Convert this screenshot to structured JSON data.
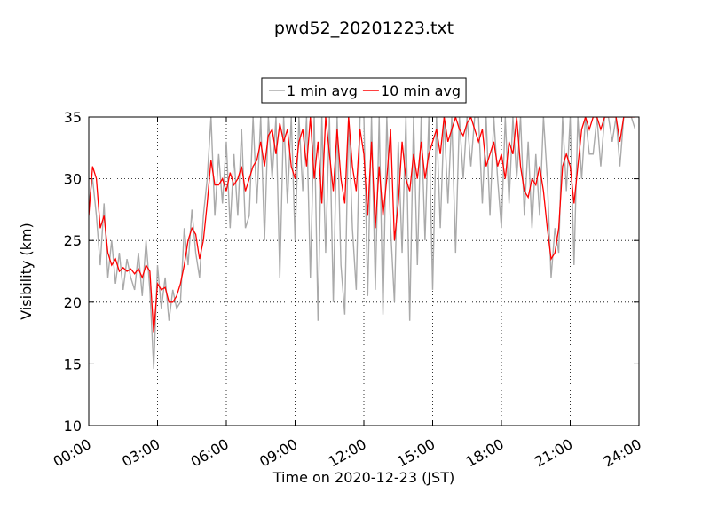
{
  "chart_data": {
    "type": "line",
    "title": "pwd52_20201223.txt",
    "x_label": "Time on 2020-12-23 (JST)",
    "y_label": "Visibility (km)",
    "xlim": [
      0,
      1440
    ],
    "xticks": [
      {
        "value": 0,
        "label": "00:00"
      },
      {
        "value": 180,
        "label": "03:00"
      },
      {
        "value": 360,
        "label": "06:00"
      },
      {
        "value": 540,
        "label": "09:00"
      },
      {
        "value": 720,
        "label": "12:00"
      },
      {
        "value": 900,
        "label": "15:00"
      },
      {
        "value": 1080,
        "label": "18:00"
      },
      {
        "value": 1260,
        "label": "21:00"
      },
      {
        "value": 1440,
        "label": "24:00"
      }
    ],
    "ylim": [
      10,
      35
    ],
    "yticks": [
      10,
      15,
      20,
      25,
      30,
      35
    ],
    "grid": true,
    "legend": "top",
    "x": [
      0,
      10,
      20,
      30,
      40,
      50,
      60,
      70,
      80,
      90,
      100,
      110,
      120,
      130,
      140,
      150,
      160,
      170,
      180,
      190,
      200,
      210,
      220,
      230,
      240,
      250,
      260,
      270,
      280,
      290,
      300,
      310,
      320,
      330,
      340,
      350,
      360,
      370,
      380,
      390,
      400,
      410,
      420,
      430,
      440,
      450,
      460,
      470,
      480,
      490,
      500,
      510,
      520,
      530,
      540,
      550,
      560,
      570,
      580,
      590,
      600,
      610,
      620,
      630,
      640,
      650,
      660,
      670,
      680,
      690,
      700,
      710,
      720,
      730,
      740,
      750,
      760,
      770,
      780,
      790,
      800,
      810,
      820,
      830,
      840,
      850,
      860,
      870,
      880,
      890,
      900,
      910,
      920,
      930,
      940,
      950,
      960,
      970,
      980,
      990,
      1000,
      1010,
      1020,
      1030,
      1040,
      1050,
      1060,
      1070,
      1080,
      1090,
      1100,
      1110,
      1120,
      1130,
      1140,
      1150,
      1160,
      1170,
      1180,
      1190,
      1200,
      1210,
      1220,
      1230,
      1240,
      1250,
      1260,
      1270,
      1280,
      1290,
      1300,
      1310,
      1320,
      1330,
      1340,
      1350,
      1360,
      1370,
      1380,
      1390,
      1400,
      1410,
      1420,
      1430
    ],
    "series": [
      {
        "name": "1 min avg",
        "color": "#aaaaaa",
        "values": [
          28,
          30,
          27,
          23,
          28,
          22,
          25,
          21.5,
          24,
          21,
          23.5,
          22,
          21,
          24,
          20.5,
          25,
          21,
          14.6,
          23,
          19.5,
          22,
          18.5,
          21,
          19.5,
          20,
          26,
          23,
          27.5,
          24,
          22,
          27,
          30,
          35,
          27,
          32,
          28,
          33,
          26,
          32,
          27,
          34,
          26,
          27,
          35,
          28,
          35,
          25,
          35,
          30,
          35,
          22,
          35,
          28,
          35,
          25,
          35,
          29,
          35,
          22,
          35,
          18.5,
          35,
          24,
          35,
          20,
          35,
          23,
          19,
          35,
          26,
          21,
          35,
          35,
          20.5,
          35,
          21,
          35,
          19,
          35,
          26,
          20,
          33,
          24,
          35,
          18.5,
          35,
          23,
          35,
          25,
          35,
          21,
          35,
          26,
          35,
          28,
          35,
          24,
          35,
          30,
          35,
          31,
          35,
          35,
          28,
          35,
          27,
          35,
          30,
          26,
          35,
          28,
          35,
          30,
          35,
          27,
          33,
          26,
          32,
          27,
          35,
          30,
          22,
          26,
          24,
          35,
          29,
          35,
          23,
          35,
          30,
          35,
          32,
          32,
          35,
          31,
          35,
          35,
          33,
          35,
          31,
          35,
          35,
          35,
          34
        ]
      },
      {
        "name": "10 min avg",
        "color": "#ff0000",
        "values": [
          27,
          31,
          30,
          26,
          27,
          24,
          23,
          23.5,
          22.5,
          22.8,
          22.5,
          22.7,
          22.3,
          22.7,
          22,
          23,
          22.5,
          17.5,
          21.5,
          21,
          21.2,
          20,
          20,
          20.5,
          21.5,
          23,
          25,
          26,
          25.5,
          23.5,
          25,
          28,
          31.5,
          29.5,
          29.5,
          30,
          29,
          30.5,
          29.5,
          30,
          31,
          29,
          30,
          31,
          31.5,
          33,
          31,
          33.5,
          34,
          32,
          34.5,
          33,
          34,
          31,
          30,
          33,
          34,
          31,
          35,
          30,
          33,
          28,
          35,
          32,
          29,
          34,
          30,
          28,
          35,
          31,
          29,
          34,
          32,
          27,
          33,
          26,
          31,
          27,
          30,
          34,
          25,
          28,
          33,
          30,
          29,
          32,
          30,
          33,
          30,
          32,
          33,
          34,
          32,
          35,
          33,
          34,
          35,
          34,
          33.5,
          34.5,
          35,
          34,
          33,
          34,
          31,
          32,
          33,
          31,
          32,
          30,
          33,
          32,
          35,
          31,
          29,
          28.5,
          30,
          29.5,
          31,
          29,
          26,
          23.5,
          24,
          26,
          31,
          32,
          31,
          28,
          31,
          34,
          35,
          34,
          35,
          35,
          34,
          35,
          35,
          35,
          35,
          33,
          35,
          35,
          35,
          35
        ]
      }
    ]
  }
}
